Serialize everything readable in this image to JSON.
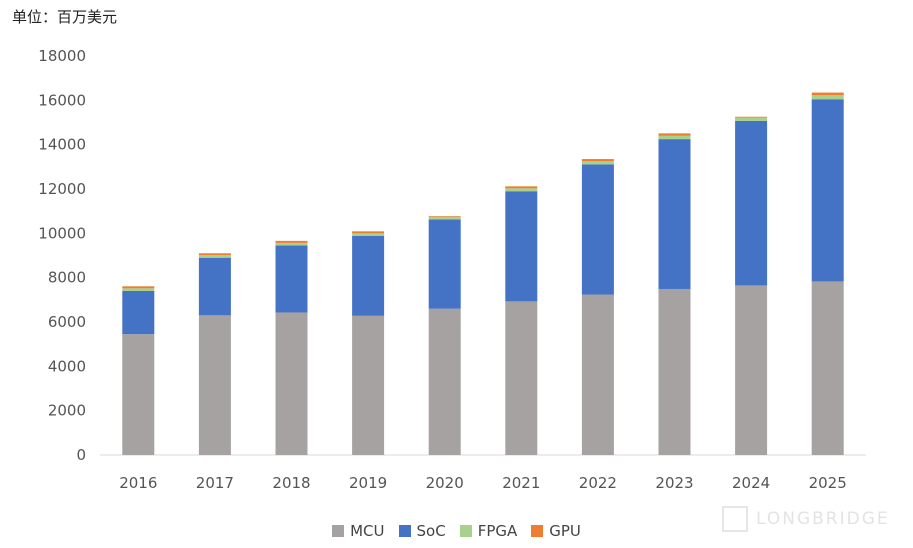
{
  "unit_label": "单位：百万美元",
  "watermark": "LONGBRIDGE",
  "chart_data": {
    "type": "bar",
    "stacked": true,
    "categories": [
      "2016",
      "2017",
      "2018",
      "2019",
      "2020",
      "2021",
      "2022",
      "2023",
      "2024",
      "2025"
    ],
    "series": [
      {
        "name": "MCU",
        "color": "#a5a2a1",
        "values": [
          5450,
          6300,
          6430,
          6280,
          6600,
          6930,
          7240,
          7490,
          7650,
          7830
        ]
      },
      {
        "name": "SoC",
        "color": "#4472c4",
        "values": [
          1950,
          2600,
          3020,
          3600,
          4030,
          4970,
          5870,
          6760,
          7420,
          8220
        ]
      },
      {
        "name": "FPGA",
        "color": "#a9d18e",
        "values": [
          120,
          120,
          120,
          120,
          120,
          130,
          140,
          150,
          150,
          180
        ]
      },
      {
        "name": "GPU",
        "color": "#ed7d31",
        "values": [
          90,
          80,
          90,
          90,
          30,
          90,
          100,
          110,
          40,
          120
        ]
      }
    ],
    "ylim": [
      0,
      18000
    ],
    "yticks": [
      0,
      2000,
      4000,
      6000,
      8000,
      10000,
      12000,
      14000,
      16000,
      18000
    ],
    "grid": false,
    "legend_position": "bottom"
  }
}
